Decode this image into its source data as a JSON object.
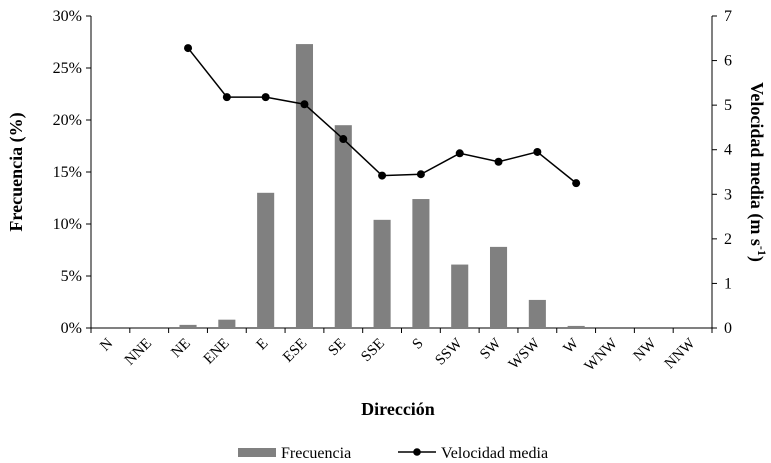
{
  "chart_data": {
    "type": "bar+line",
    "categories": [
      "N",
      "NNE",
      "NE",
      "ENE",
      "E",
      "ESE",
      "SE",
      "SSE",
      "S",
      "SSW",
      "SW",
      "WSW",
      "W",
      "WNW",
      "NW",
      "NNW"
    ],
    "series": [
      {
        "name": "Frecuencia",
        "type": "bar",
        "axis": "left",
        "color": "#808080",
        "values": [
          0,
          0,
          0.3,
          0.8,
          13.0,
          27.3,
          19.5,
          10.4,
          12.4,
          6.1,
          7.8,
          2.7,
          0.2,
          0,
          0,
          0
        ]
      },
      {
        "name": "Velocidad media",
        "type": "line",
        "axis": "right",
        "color": "#000000",
        "values": [
          null,
          null,
          6.28,
          5.18,
          5.18,
          5.02,
          4.24,
          3.42,
          3.45,
          3.92,
          3.73,
          3.95,
          3.25,
          null,
          null,
          null
        ]
      }
    ],
    "xlabel": "Dirección",
    "ylabel_left": "Frecuencia (%)",
    "ylabel_right": "Velocidad media (m s",
    "ylabel_right_sup": "-1",
    "ylabel_right_close": ")",
    "ylim_left": [
      0,
      30
    ],
    "ylim_right": [
      0,
      7
    ],
    "yticks_left": [
      "0%",
      "5%",
      "10%",
      "15%",
      "20%",
      "25%",
      "30%"
    ],
    "yticks_right": [
      "0",
      "1",
      "2",
      "3",
      "4",
      "5",
      "6",
      "7"
    ],
    "grid": false,
    "legend": "bottom"
  }
}
